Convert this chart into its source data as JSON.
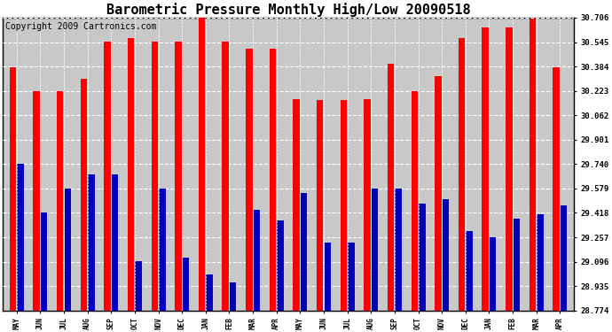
{
  "title": "Barometric Pressure Monthly High/Low 20090518",
  "copyright": "Copyright 2009 Cartronics.com",
  "months": [
    "MAY",
    "JUN",
    "JUL",
    "AUG",
    "SEP",
    "OCT",
    "NOV",
    "DEC",
    "JAN",
    "FEB",
    "MAR",
    "APR",
    "MAY",
    "JUN",
    "JUL",
    "AUG",
    "SEP",
    "OCT",
    "NOV",
    "DEC",
    "JAN",
    "FEB",
    "MAR",
    "APR"
  ],
  "highs": [
    30.38,
    30.22,
    30.22,
    30.3,
    30.55,
    30.57,
    30.55,
    30.55,
    30.71,
    30.55,
    30.5,
    30.5,
    30.17,
    30.16,
    30.16,
    30.17,
    30.4,
    30.22,
    30.32,
    30.57,
    30.64,
    30.64,
    30.7,
    30.38
  ],
  "lows": [
    29.74,
    29.42,
    29.58,
    29.67,
    29.67,
    29.1,
    29.58,
    29.12,
    29.01,
    28.96,
    29.44,
    29.37,
    29.55,
    29.22,
    29.22,
    29.58,
    29.58,
    29.48,
    29.51,
    29.3,
    29.26,
    29.38,
    29.41,
    29.47
  ],
  "high_color": "#ff0000",
  "low_color": "#0000bb",
  "bg_color": "#ffffff",
  "plot_bg_color": "#c8c8c8",
  "grid_color": "#ffffff",
  "title_fontsize": 11,
  "copyright_fontsize": 7,
  "ymin": 28.774,
  "ymax": 30.706,
  "yticks": [
    28.774,
    28.935,
    29.096,
    29.257,
    29.418,
    29.579,
    29.74,
    29.901,
    30.062,
    30.223,
    30.384,
    30.545,
    30.706
  ]
}
